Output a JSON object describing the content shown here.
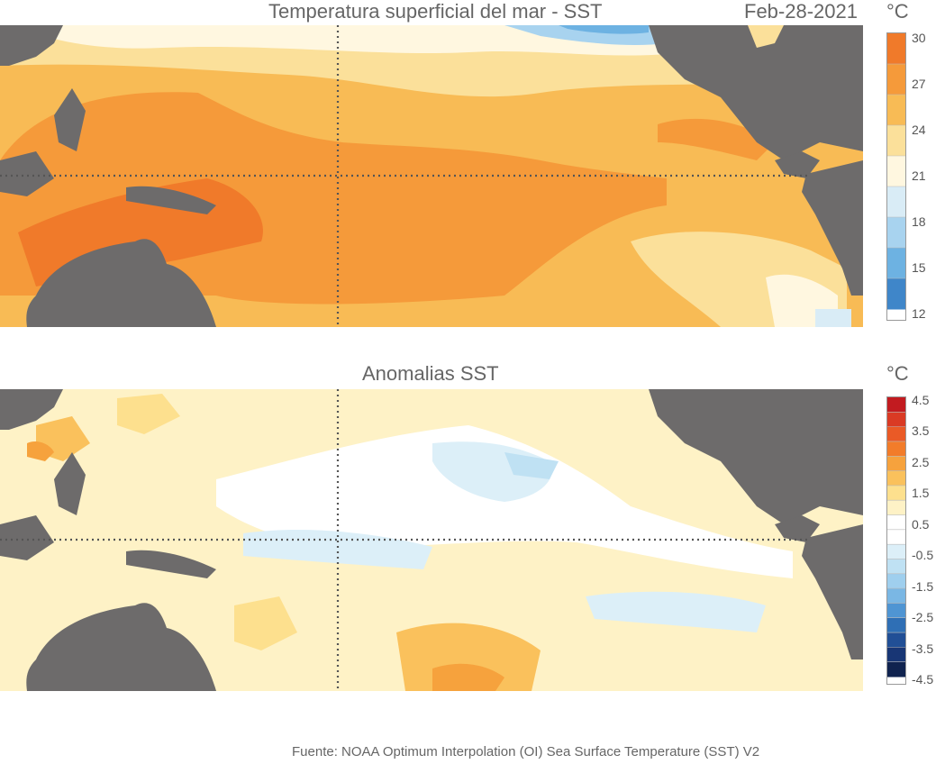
{
  "top_panel": {
    "title": "Temperatura superficial del mar - SST",
    "date": "Feb-28-2021",
    "unit": "°C",
    "colorbar_ticks": [
      "30",
      "27",
      "24",
      "21",
      "18",
      "15",
      "12"
    ],
    "colorbar_colors": [
      "#f07a2a",
      "#f59a3a",
      "#f8bb55",
      "#fbe09a",
      "#fff7e0",
      "#d9ecf6",
      "#a8d3ef",
      "#6db2e2",
      "#3f86c9"
    ]
  },
  "bottom_panel": {
    "title": "Anomalias SST",
    "unit": "°C",
    "colorbar_ticks": [
      "4.5",
      "3.5",
      "2.5",
      "1.5",
      "0.5",
      "-0.5",
      "-1.5",
      "-2.5",
      "-3.5",
      "-4.5"
    ],
    "colorbar_colors": [
      "#c21b20",
      "#da3a24",
      "#ea5a26",
      "#f27c2a",
      "#f6a23d",
      "#fac15c",
      "#fde08e",
      "#fef2c6",
      "#ffffff",
      "#ffffff",
      "#dceff8",
      "#bfe1f3",
      "#9fcfee",
      "#7ab7e4",
      "#4f95d3",
      "#2f6fb5",
      "#214f96",
      "#183675",
      "#10234f"
    ]
  },
  "source": "Fuente: NOAA Optimum Interpolation (OI) Sea Surface Temperature (SST) V2",
  "colors": {
    "land": "#6d6b6b",
    "gridline": "#555555"
  }
}
